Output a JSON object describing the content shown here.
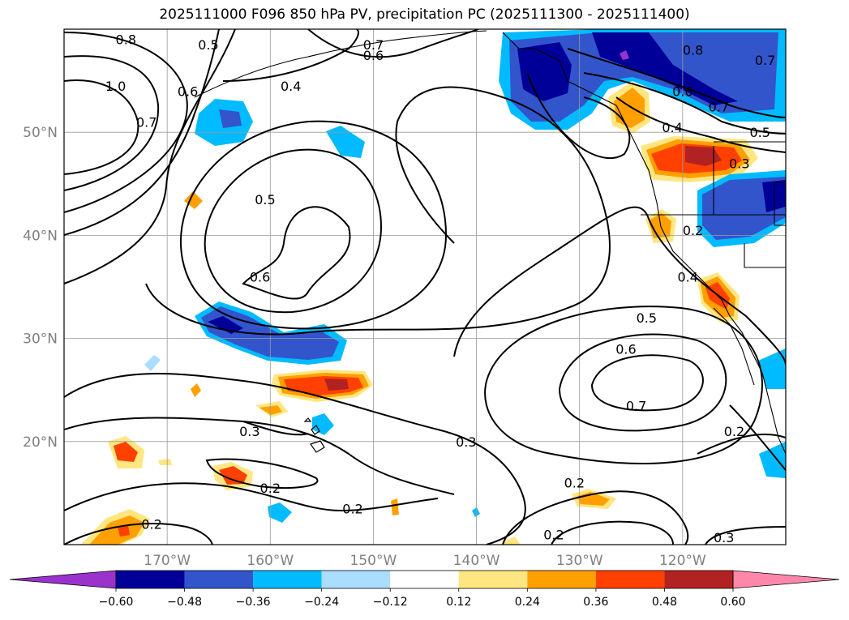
{
  "title": "2025111000 F096 850 hPa PV, precipitation PC (2025111300 - 2025111400)",
  "map": {
    "projection": "PlateCarree",
    "lon_range": [
      -180,
      -110
    ],
    "lat_range": [
      10,
      60
    ],
    "lat_ticks": [
      "20°N",
      "30°N",
      "40°N",
      "50°N"
    ],
    "lon_ticks": [
      "170°W",
      "160°W",
      "150°W",
      "140°W",
      "130°W",
      "120°W"
    ],
    "gridlines": true,
    "pv_contour_labels": [
      {
        "text": "0.8",
        "lon": -174,
        "lat": 59
      },
      {
        "text": "1.0",
        "lon": -175,
        "lat": 54.5
      },
      {
        "text": "0.7",
        "lon": -172,
        "lat": 51
      },
      {
        "text": "0.6",
        "lon": -168,
        "lat": 54
      },
      {
        "text": "0.5",
        "lon": -166,
        "lat": 58.5
      },
      {
        "text": "0.4",
        "lon": -158,
        "lat": 54.5
      },
      {
        "text": "0.7",
        "lon": -150,
        "lat": 58.5
      },
      {
        "text": "0.6",
        "lon": -150,
        "lat": 57.5
      },
      {
        "text": "0.5",
        "lon": -160.5,
        "lat": 43.5
      },
      {
        "text": "0.6",
        "lon": -161,
        "lat": 36
      },
      {
        "text": "0.3",
        "lon": -162,
        "lat": 21
      },
      {
        "text": "0.3",
        "lon": -141,
        "lat": 20
      },
      {
        "text": "0.2",
        "lon": -160,
        "lat": 15.5
      },
      {
        "text": "0.2",
        "lon": -152,
        "lat": 13.5
      },
      {
        "text": "0.2",
        "lon": -171.5,
        "lat": 12
      },
      {
        "text": "0.2",
        "lon": -130.5,
        "lat": 16
      },
      {
        "text": "0.2",
        "lon": -132.5,
        "lat": 11
      },
      {
        "text": "0.3",
        "lon": -116,
        "lat": 10.7
      },
      {
        "text": "0.2",
        "lon": -115,
        "lat": 21
      },
      {
        "text": "0.7",
        "lon": -124.5,
        "lat": 23.5
      },
      {
        "text": "0.6",
        "lon": -125.5,
        "lat": 29
      },
      {
        "text": "0.5",
        "lon": -123.5,
        "lat": 32
      },
      {
        "text": "0.4",
        "lon": -119.5,
        "lat": 36
      },
      {
        "text": "0.2",
        "lon": -119,
        "lat": 40.5
      },
      {
        "text": "0.3",
        "lon": -114.5,
        "lat": 47
      },
      {
        "text": "0.4",
        "lon": -121,
        "lat": 50.5
      },
      {
        "text": "0.5",
        "lon": -112.5,
        "lat": 50
      },
      {
        "text": "0.6",
        "lon": -120,
        "lat": 54
      },
      {
        "text": "0.7",
        "lon": -116.5,
        "lat": 52.5
      },
      {
        "text": "0.8",
        "lon": -119,
        "lat": 58
      },
      {
        "text": "0.7",
        "lon": -112,
        "lat": 57
      }
    ]
  },
  "colorbar": {
    "ticks": [
      "−0.60",
      "−0.48",
      "−0.36",
      "−0.24",
      "−0.12",
      "0.12",
      "0.24",
      "0.36",
      "0.48",
      "0.60"
    ],
    "colors": {
      "under": "#9933cc",
      "bins": [
        "#000099",
        "#3355cc",
        "#00bbff",
        "#aaddff",
        "#ffffff",
        "#ffe680",
        "#ffa000",
        "#ff4000",
        "#b22222"
      ],
      "over": "#ff88aa"
    }
  },
  "colors": {
    "neg_strong": "#000099",
    "neg_mid": "#3355cc",
    "neg_light": "#00bbff",
    "neg_pale": "#aaddff",
    "pos_pale": "#ffe680",
    "pos_mid": "#ffa000",
    "pos_strong": "#ff4000",
    "pos_max": "#b22222"
  }
}
